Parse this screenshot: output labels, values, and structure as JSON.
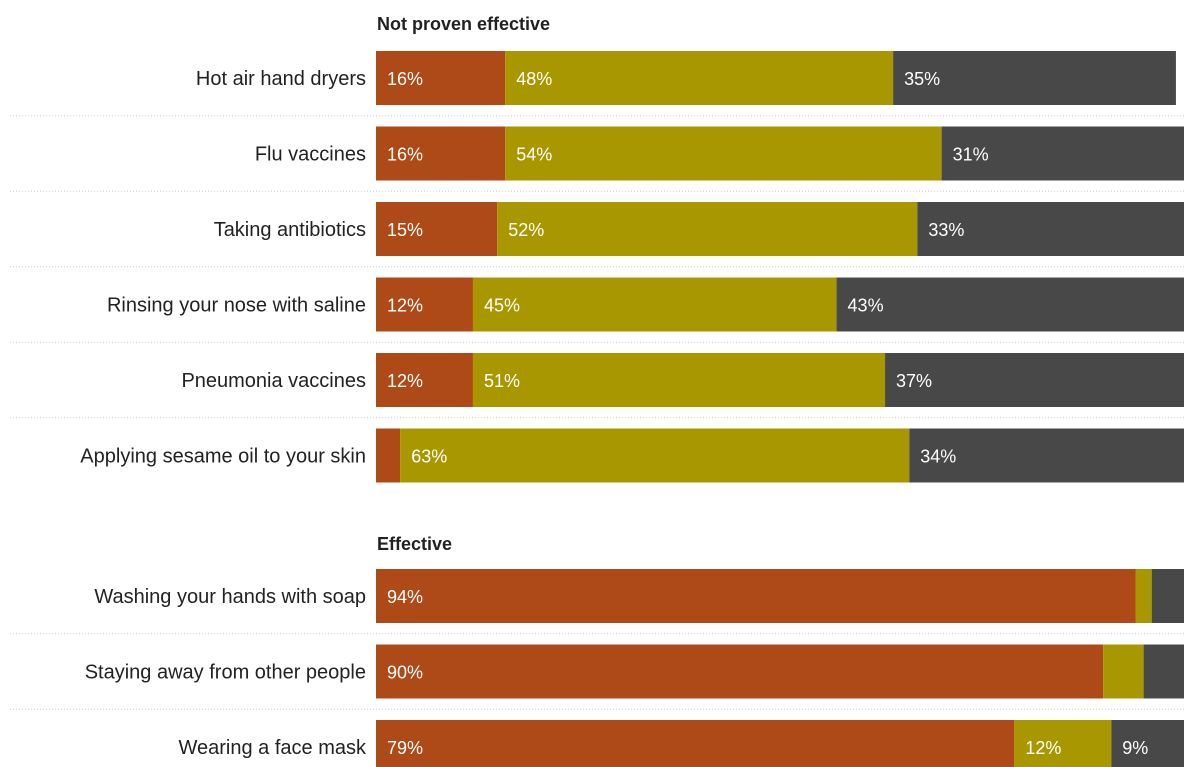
{
  "chart_data": {
    "type": "bar",
    "orientation": "horizontal",
    "stacked": true,
    "xlim": [
      0,
      100
    ],
    "grid": false,
    "legend": "none",
    "series_colors": [
      "#ad4a18",
      "#a99700",
      "#484848"
    ],
    "groups": [
      {
        "title": "Not proven effective",
        "rows": [
          {
            "label": "Hot air hand dryers",
            "values": [
              16,
              48,
              35
            ],
            "value_labels": [
              "16%",
              "48%",
              "35%"
            ]
          },
          {
            "label": "Flu vaccines",
            "values": [
              16,
              54,
              31
            ],
            "value_labels": [
              "16%",
              "54%",
              "31%"
            ]
          },
          {
            "label": "Taking antibiotics",
            "values": [
              15,
              52,
              33
            ],
            "value_labels": [
              "15%",
              "52%",
              "33%"
            ]
          },
          {
            "label": "Rinsing your nose with saline",
            "values": [
              12,
              45,
              43
            ],
            "value_labels": [
              "12%",
              "45%",
              "43%"
            ]
          },
          {
            "label": "Pneumonia vaccines",
            "values": [
              12,
              51,
              37
            ],
            "value_labels": [
              "12%",
              "51%",
              "37%"
            ]
          },
          {
            "label": "Applying sesame oil to your skin",
            "values": [
              3,
              63,
              34
            ],
            "value_labels": [
              "",
              "63%",
              "34%"
            ]
          }
        ]
      },
      {
        "title": "Effective",
        "rows": [
          {
            "label": "Washing your hands with soap",
            "values": [
              94,
              2,
              4
            ],
            "value_labels": [
              "94%",
              "",
              ""
            ]
          },
          {
            "label": "Staying away from other people",
            "values": [
              90,
              5,
              5
            ],
            "value_labels": [
              "90%",
              "",
              ""
            ]
          },
          {
            "label": "Wearing a face mask",
            "values": [
              79,
              12,
              9
            ],
            "value_labels": [
              "79%",
              "12%",
              "9%"
            ]
          }
        ]
      }
    ]
  }
}
